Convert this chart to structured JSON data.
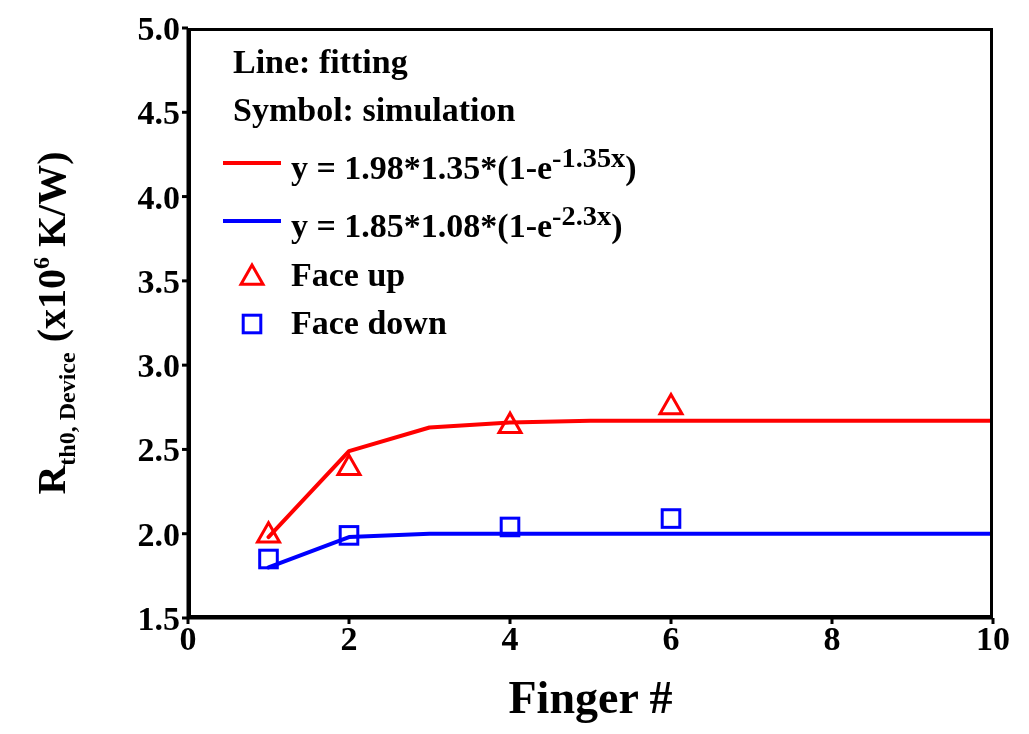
{
  "chart_data": {
    "type": "line",
    "xlabel": "Finger #",
    "ylabel": "R$_{th0, Device}$ (x10$^{6}$ K/W)",
    "annotations": [
      "Line: fitting",
      "Symbol: simulation"
    ],
    "xlim": [
      0,
      10
    ],
    "xticks": [
      0,
      2,
      4,
      6,
      8,
      10
    ],
    "ylim": [
      1.5,
      5.0
    ],
    "yticks": [
      {
        "value": 1.5,
        "label": "1.5"
      },
      {
        "value": 2.0,
        "label": "2.0"
      },
      {
        "value": 2.5,
        "label": "2.5"
      },
      {
        "value": 3.0,
        "label": "3.0"
      },
      {
        "value": 3.5,
        "label": "3.5"
      },
      {
        "value": 4.0,
        "label": "4.0"
      },
      {
        "value": 4.5,
        "label": "4.5"
      },
      {
        "value": 5.0,
        "label": "5.0"
      }
    ],
    "grid": false,
    "legend": "top left",
    "line_style": "solid",
    "series": [
      {
        "name": "y = 1.98*1.35*(1-e$^{-1.35x}$)",
        "color": "#ff0000",
        "marker": "none",
        "x": [
          1,
          2,
          3,
          4,
          5,
          6,
          7,
          8,
          9,
          10
        ],
        "values": [
          1.98,
          2.49,
          2.63,
          2.66,
          2.67,
          2.67,
          2.67,
          2.67,
          2.67,
          2.67
        ]
      },
      {
        "name": "y = 1.85*1.08*(1-e$^{-2.3x}$)",
        "color": "#0000ff",
        "marker": "none",
        "x": [
          1,
          2,
          3,
          4,
          5,
          6,
          7,
          8,
          9,
          10
        ],
        "values": [
          1.8,
          1.98,
          2.0,
          2.0,
          2.0,
          2.0,
          2.0,
          2.0,
          2.0,
          2.0
        ]
      },
      {
        "name": "Face up",
        "type": "scatter",
        "color": "#ff0000",
        "marker": "triangle",
        "x": [
          1,
          2,
          4,
          6
        ],
        "values": [
          2.0,
          2.4,
          2.65,
          2.76
        ]
      },
      {
        "name": "Face down",
        "type": "scatter",
        "color": "#0000ff",
        "marker": "square",
        "x": [
          1,
          2,
          4,
          6
        ],
        "values": [
          1.85,
          1.99,
          2.04,
          2.09
        ]
      }
    ]
  }
}
